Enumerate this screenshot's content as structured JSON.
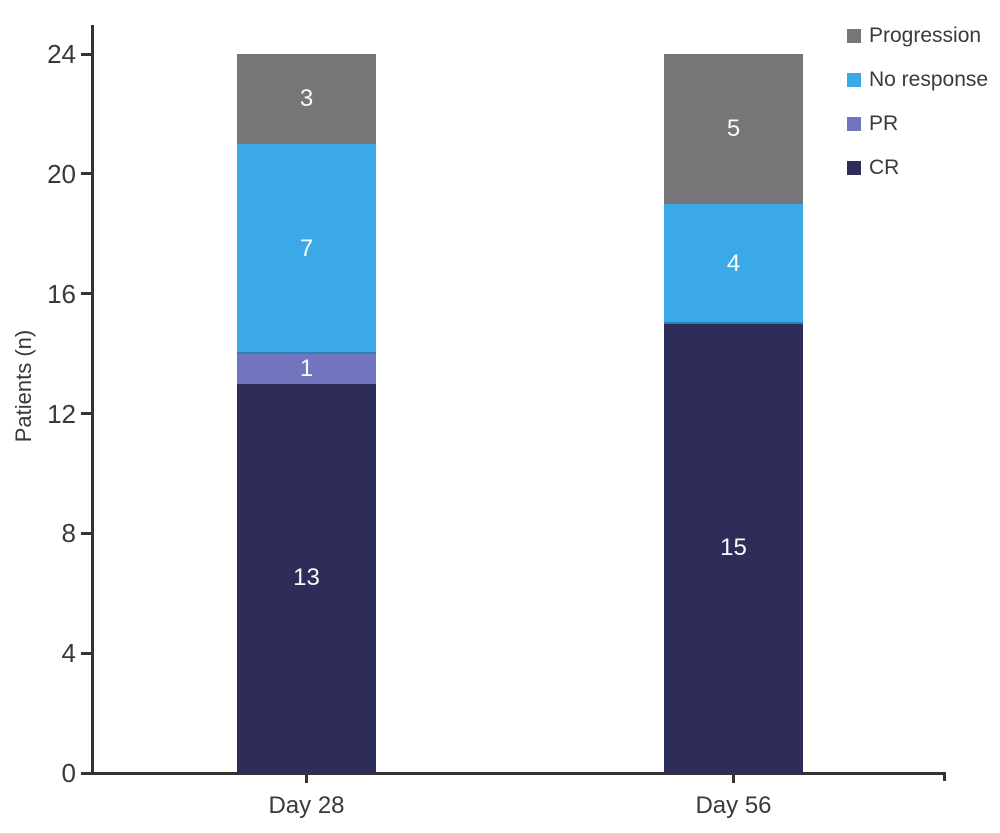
{
  "chart_data": {
    "type": "bar",
    "stacked": true,
    "categories": [
      "Day 28",
      "Day 56"
    ],
    "series": [
      {
        "name": "CR",
        "color": "#2e2d59",
        "values": [
          13,
          15
        ]
      },
      {
        "name": "PR",
        "color": "#7175be",
        "values": [
          1,
          0
        ]
      },
      {
        "name": "No response",
        "color": "#3ba9e8",
        "values": [
          7,
          4
        ]
      },
      {
        "name": "Progression",
        "color": "#767679",
        "values": [
          3,
          5
        ]
      }
    ],
    "ylabel": "Patients (n)",
    "ylim": [
      0,
      24
    ],
    "yticks": [
      0,
      4,
      8,
      12,
      16,
      20,
      24
    ],
    "grid": false,
    "legend_position": "top-right",
    "legend_order": [
      "Progression",
      "No response",
      "PR",
      "CR"
    ],
    "value_label_color": "#fafafa",
    "axis_color": "#333333"
  }
}
